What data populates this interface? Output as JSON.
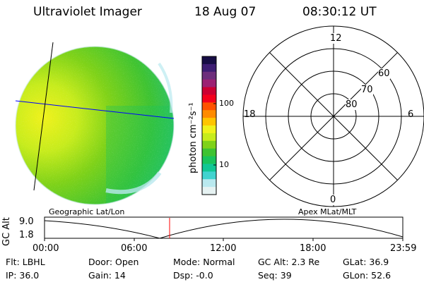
{
  "header": {
    "instrument": "Ultraviolet Imager",
    "date": "18 Aug 07",
    "time": "08:30:12 UT"
  },
  "colorbar": {
    "unit_label": "photon cm⁻²s⁻¹",
    "ticks": [
      "100",
      "10"
    ],
    "colors": [
      "#e6f2f2",
      "#b9e9ef",
      "#41d3cf",
      "#11c794",
      "#19c45c",
      "#3ec332",
      "#7fd218",
      "#c7ec1c",
      "#f0f21b",
      "#ffc500",
      "#ff8b00",
      "#ff5200",
      "#f4001d",
      "#cc0032",
      "#9c2173",
      "#6d2e7c",
      "#3d1d73",
      "#160d44"
    ]
  },
  "polar": {
    "top_label": "12",
    "bottom_label": "0",
    "left_label": "18",
    "right_label": "6",
    "ring_labels": [
      "60",
      "70",
      "80"
    ]
  },
  "timeline": {
    "y_axis_label": "GC Alt",
    "y_ticks": [
      "9.0",
      "1.8"
    ],
    "x_ticks": [
      "00:00",
      "06:00",
      "12:00",
      "18:00",
      "23:59"
    ],
    "left_title": "Geographic Lat/Lon",
    "right_title": "Apex  MLat/MLT",
    "marker_color": "#ff0000"
  },
  "status": {
    "filter": "Flt: LBHL",
    "ip": "IP: 36.0",
    "door": "Door: Open",
    "gain": "Gain: 14",
    "mode": "Mode: Normal",
    "dsp": "Dsp:    -0.0",
    "gc_alt": "GC Alt: 2.3 Re",
    "seq": "Seq: 39",
    "glat": "GLat:   36.9",
    "glon": "GLon:   52.6"
  }
}
